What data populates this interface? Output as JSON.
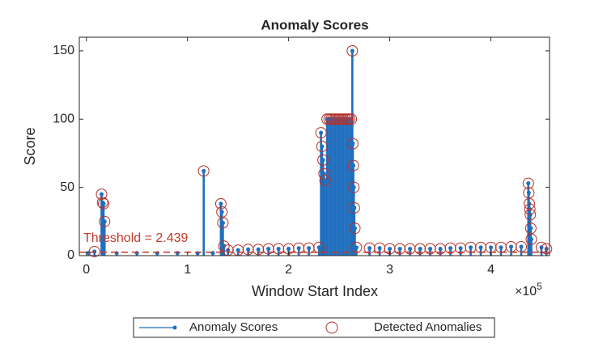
{
  "chart_data": {
    "type": "stem",
    "title": "Anomaly Scores",
    "xlabel": "Window Start Index",
    "ylabel": "Score",
    "x_multiplier": {
      "base": "×10",
      "power": "5"
    },
    "xlim": [
      -0.07,
      4.58
    ],
    "ylim": [
      0,
      160
    ],
    "xticks": [
      0,
      1,
      2,
      3,
      4
    ],
    "yticks": [
      0,
      50,
      100,
      150
    ],
    "threshold": {
      "value": 2.439,
      "label": "Threshold = 2.439",
      "color": "#c0392b"
    },
    "series": [
      {
        "name": "Anomaly Scores",
        "color": "#1f6fbf",
        "marker": "dot",
        "x": [
          0.02,
          0.08,
          0.15,
          0.16,
          0.17,
          0.18,
          0.3,
          0.5,
          0.7,
          0.9,
          1.1,
          1.16,
          1.25,
          1.33,
          1.34,
          1.35,
          1.36,
          1.4,
          1.5,
          1.6,
          1.7,
          1.8,
          1.9,
          2.0,
          2.1,
          2.2,
          2.3,
          2.32,
          2.33,
          2.34,
          2.35,
          2.36,
          2.38,
          2.4,
          2.42,
          2.44,
          2.46,
          2.48,
          2.5,
          2.52,
          2.54,
          2.56,
          2.58,
          2.6,
          2.62,
          2.63,
          2.635,
          2.64,
          2.645,
          2.65,
          2.655,
          2.67,
          2.8,
          2.9,
          3.0,
          3.1,
          3.2,
          3.3,
          3.4,
          3.5,
          3.6,
          3.7,
          3.8,
          3.9,
          4.0,
          4.1,
          4.2,
          4.3,
          4.37,
          4.375,
          4.38,
          4.385,
          4.39,
          4.395,
          4.4,
          4.5,
          4.55
        ],
        "values": [
          2,
          3,
          45,
          39,
          38,
          25,
          1.8,
          1.9,
          1.8,
          1.9,
          1.8,
          62,
          1.9,
          38,
          32,
          24,
          7,
          4,
          4,
          4.5,
          4.5,
          5,
          5,
          5,
          5.5,
          5.5,
          6,
          90,
          80,
          70,
          60,
          55,
          100,
          100,
          100,
          100,
          100,
          100,
          100,
          100,
          100,
          100,
          100,
          100,
          100,
          150,
          82,
          66,
          50,
          35,
          20,
          6,
          5.5,
          5.5,
          5,
          5,
          5,
          5,
          5,
          5,
          5.5,
          5.5,
          6,
          6,
          6,
          6,
          6.5,
          6.5,
          53,
          46,
          38,
          34,
          30,
          20,
          12,
          6,
          5
        ]
      },
      {
        "name": "Detected Anomalies",
        "color": "#b5302a",
        "marker": "circle",
        "x": [
          0.08,
          0.15,
          0.16,
          0.17,
          0.18,
          1.16,
          1.33,
          1.34,
          1.35,
          1.36,
          1.4,
          1.5,
          1.6,
          1.7,
          1.8,
          1.9,
          2.0,
          2.1,
          2.2,
          2.3,
          2.32,
          2.33,
          2.34,
          2.35,
          2.36,
          2.38,
          2.4,
          2.42,
          2.44,
          2.46,
          2.48,
          2.5,
          2.52,
          2.54,
          2.56,
          2.58,
          2.6,
          2.62,
          2.63,
          2.635,
          2.64,
          2.645,
          2.65,
          2.655,
          2.67,
          2.8,
          2.9,
          3.0,
          3.1,
          3.2,
          3.3,
          3.4,
          3.5,
          3.6,
          3.7,
          3.8,
          3.9,
          4.0,
          4.1,
          4.2,
          4.3,
          4.37,
          4.375,
          4.38,
          4.385,
          4.39,
          4.395,
          4.4,
          4.5,
          4.55
        ],
        "values": [
          3,
          45,
          39,
          38,
          25,
          62,
          38,
          32,
          24,
          7,
          4,
          4,
          4.5,
          4.5,
          5,
          5,
          5,
          5.5,
          5.5,
          6,
          90,
          80,
          70,
          60,
          55,
          100,
          100,
          100,
          100,
          100,
          100,
          100,
          100,
          100,
          100,
          100,
          100,
          100,
          150,
          82,
          66,
          50,
          35,
          20,
          6,
          5.5,
          5.5,
          5,
          5,
          5,
          5,
          5,
          5,
          5.5,
          5.5,
          6,
          6,
          6,
          6,
          6.5,
          6.5,
          53,
          46,
          38,
          34,
          30,
          20,
          12,
          6,
          5
        ]
      }
    ]
  }
}
